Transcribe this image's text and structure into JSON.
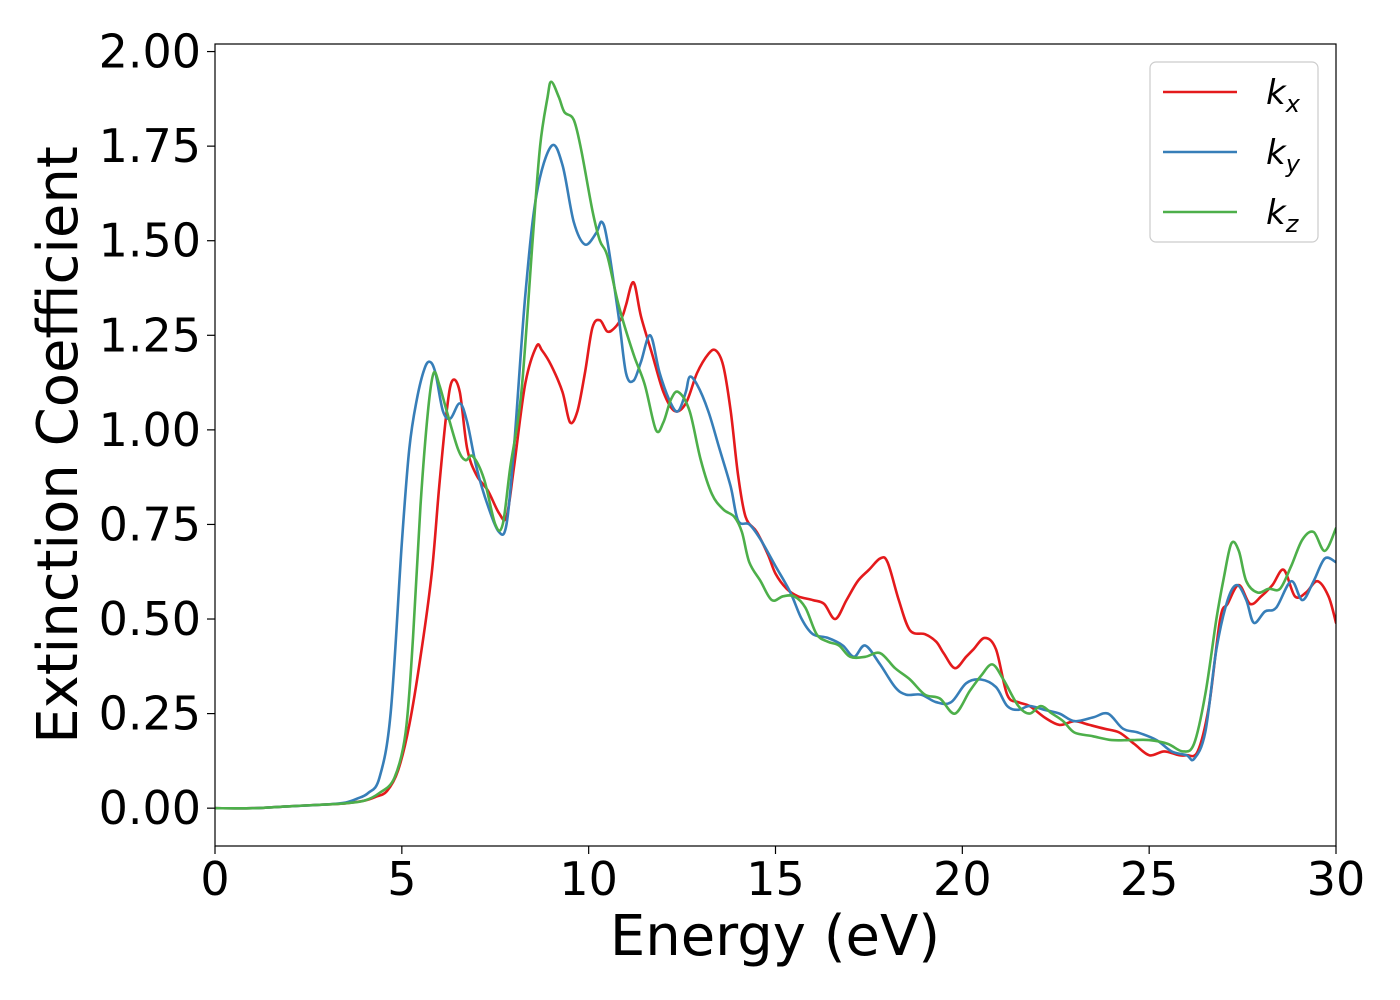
{
  "chart_data": {
    "type": "line",
    "title": "",
    "xlabel": "Energy (eV)",
    "ylabel": "Extinction Coefficient",
    "xlim": [
      0,
      30
    ],
    "ylim": [
      -0.1,
      2.02
    ],
    "xticks": [
      0,
      5,
      10,
      15,
      20,
      25,
      30
    ],
    "xtick_labels": [
      "0",
      "5",
      "10",
      "15",
      "20",
      "25",
      "30"
    ],
    "yticks": [
      0.0,
      0.25,
      0.5,
      0.75,
      1.0,
      1.25,
      1.5,
      1.75,
      2.0
    ],
    "ytick_labels": [
      "0.00",
      "0.25",
      "0.50",
      "0.75",
      "1.00",
      "1.25",
      "1.50",
      "1.75",
      "2.00"
    ],
    "grid": false,
    "legend_position": "top-right",
    "series": [
      {
        "name": "k_x",
        "legend_main": "k",
        "legend_sub": "x",
        "color": "#e41a1c",
        "x": [
          0,
          1,
          2,
          3,
          3.5,
          4,
          4.3,
          4.6,
          4.9,
          5.2,
          5.5,
          5.8,
          6.0,
          6.2,
          6.35,
          6.55,
          6.75,
          7.0,
          7.3,
          7.6,
          7.8,
          8.0,
          8.3,
          8.6,
          8.75,
          9.0,
          9.3,
          9.5,
          9.7,
          9.9,
          10.1,
          10.3,
          10.5,
          10.7,
          10.9,
          11.0,
          11.2,
          11.4,
          11.7,
          12.0,
          12.3,
          12.6,
          12.9,
          13.2,
          13.4,
          13.6,
          13.8,
          14.0,
          14.2,
          14.5,
          14.8,
          15.0,
          15.3,
          15.6,
          16.0,
          16.3,
          16.6,
          16.9,
          17.2,
          17.5,
          17.8,
          18.0,
          18.3,
          18.6,
          19.0,
          19.3,
          19.5,
          19.8,
          20.1,
          20.3,
          20.6,
          20.9,
          21.2,
          21.5,
          21.8,
          22.2,
          22.6,
          23.0,
          23.4,
          23.8,
          24.2,
          24.6,
          25.0,
          25.4,
          25.8,
          26.0,
          26.3,
          26.6,
          26.9,
          27.1,
          27.4,
          27.7,
          28.0,
          28.3,
          28.6,
          28.9,
          29.2,
          29.5,
          29.8,
          30.0
        ],
        "y": [
          0.0,
          0.0,
          0.005,
          0.01,
          0.013,
          0.02,
          0.03,
          0.045,
          0.1,
          0.22,
          0.4,
          0.62,
          0.85,
          1.05,
          1.13,
          1.1,
          0.95,
          0.88,
          0.84,
          0.78,
          0.77,
          0.9,
          1.12,
          1.22,
          1.21,
          1.17,
          1.1,
          1.02,
          1.05,
          1.15,
          1.27,
          1.29,
          1.26,
          1.27,
          1.3,
          1.33,
          1.39,
          1.3,
          1.2,
          1.1,
          1.05,
          1.07,
          1.15,
          1.2,
          1.21,
          1.17,
          1.05,
          0.88,
          0.77,
          0.73,
          0.67,
          0.62,
          0.58,
          0.56,
          0.55,
          0.54,
          0.5,
          0.55,
          0.6,
          0.63,
          0.66,
          0.65,
          0.55,
          0.47,
          0.46,
          0.44,
          0.41,
          0.37,
          0.4,
          0.42,
          0.45,
          0.42,
          0.3,
          0.28,
          0.27,
          0.24,
          0.22,
          0.23,
          0.22,
          0.21,
          0.2,
          0.17,
          0.14,
          0.15,
          0.14,
          0.14,
          0.15,
          0.27,
          0.5,
          0.54,
          0.59,
          0.54,
          0.56,
          0.59,
          0.63,
          0.56,
          0.57,
          0.6,
          0.56,
          0.49
        ]
      },
      {
        "name": "k_y",
        "legend_main": "k",
        "legend_sub": "y",
        "color": "#377eb8",
        "x": [
          0,
          1,
          2,
          3,
          3.5,
          3.8,
          4.1,
          4.4,
          4.7,
          5.0,
          5.2,
          5.4,
          5.6,
          5.75,
          5.9,
          6.1,
          6.3,
          6.55,
          6.75,
          7.0,
          7.3,
          7.6,
          7.8,
          8.0,
          8.3,
          8.6,
          9.0,
          9.3,
          9.6,
          9.9,
          10.2,
          10.35,
          10.5,
          10.8,
          11.0,
          11.2,
          11.4,
          11.65,
          11.9,
          12.2,
          12.4,
          12.6,
          12.7,
          12.9,
          13.2,
          13.5,
          13.8,
          14.0,
          14.3,
          14.6,
          15.0,
          15.4,
          15.7,
          16.0,
          16.4,
          16.8,
          17.1,
          17.4,
          17.8,
          18.2,
          18.5,
          18.9,
          19.3,
          19.7,
          20.1,
          20.5,
          20.9,
          21.2,
          21.5,
          21.8,
          22.2,
          22.6,
          23.0,
          23.5,
          23.9,
          24.3,
          24.7,
          25.2,
          25.6,
          26.0,
          26.2,
          26.5,
          26.8,
          27.1,
          27.35,
          27.6,
          27.8,
          28.1,
          28.4,
          28.8,
          29.1,
          29.4,
          29.7,
          30.0
        ],
        "y": [
          0.0,
          0.0,
          0.005,
          0.01,
          0.015,
          0.025,
          0.04,
          0.08,
          0.25,
          0.7,
          0.95,
          1.08,
          1.16,
          1.18,
          1.15,
          1.05,
          1.03,
          1.07,
          1.02,
          0.9,
          0.8,
          0.73,
          0.75,
          0.95,
          1.35,
          1.62,
          1.75,
          1.7,
          1.55,
          1.49,
          1.52,
          1.55,
          1.5,
          1.3,
          1.15,
          1.13,
          1.18,
          1.25,
          1.15,
          1.07,
          1.05,
          1.1,
          1.14,
          1.12,
          1.05,
          0.95,
          0.85,
          0.76,
          0.75,
          0.71,
          0.64,
          0.57,
          0.5,
          0.46,
          0.45,
          0.43,
          0.4,
          0.43,
          0.38,
          0.32,
          0.3,
          0.3,
          0.28,
          0.28,
          0.33,
          0.34,
          0.32,
          0.27,
          0.26,
          0.27,
          0.26,
          0.25,
          0.23,
          0.24,
          0.25,
          0.21,
          0.2,
          0.18,
          0.15,
          0.14,
          0.13,
          0.2,
          0.42,
          0.55,
          0.59,
          0.55,
          0.49,
          0.52,
          0.53,
          0.6,
          0.55,
          0.6,
          0.66,
          0.65
        ]
      },
      {
        "name": "k_z",
        "legend_main": "k",
        "legend_sub": "z",
        "color": "#4daf4a",
        "x": [
          0,
          1,
          2,
          3,
          3.5,
          4.0,
          4.4,
          4.8,
          5.1,
          5.3,
          5.5,
          5.7,
          5.85,
          6.0,
          6.2,
          6.5,
          6.7,
          6.9,
          7.2,
          7.5,
          7.7,
          7.9,
          8.2,
          8.5,
          8.7,
          8.9,
          9.0,
          9.2,
          9.35,
          9.6,
          9.8,
          10.1,
          10.3,
          10.5,
          10.8,
          11.2,
          11.5,
          11.8,
          12.0,
          12.2,
          12.4,
          12.7,
          13.0,
          13.3,
          13.6,
          13.9,
          14.1,
          14.3,
          14.6,
          14.9,
          15.2,
          15.5,
          15.8,
          16.1,
          16.4,
          16.7,
          17.0,
          17.4,
          17.8,
          18.2,
          18.6,
          19.0,
          19.4,
          19.8,
          20.2,
          20.5,
          20.8,
          21.1,
          21.5,
          21.8,
          22.1,
          22.4,
          22.7,
          23.0,
          23.5,
          24.0,
          24.5,
          25.0,
          25.5,
          25.9,
          26.2,
          26.5,
          26.8,
          27.0,
          27.2,
          27.4,
          27.6,
          27.9,
          28.2,
          28.5,
          28.8,
          29.1,
          29.4,
          29.7,
          30.0
        ],
        "y": [
          0.0,
          0.0,
          0.005,
          0.01,
          0.013,
          0.02,
          0.04,
          0.08,
          0.2,
          0.45,
          0.8,
          1.05,
          1.15,
          1.12,
          1.05,
          0.95,
          0.92,
          0.93,
          0.87,
          0.75,
          0.75,
          0.9,
          1.1,
          1.5,
          1.75,
          1.88,
          1.92,
          1.88,
          1.84,
          1.82,
          1.74,
          1.58,
          1.5,
          1.46,
          1.33,
          1.2,
          1.12,
          1.0,
          1.02,
          1.08,
          1.1,
          1.05,
          0.92,
          0.83,
          0.79,
          0.77,
          0.73,
          0.65,
          0.6,
          0.55,
          0.56,
          0.56,
          0.53,
          0.46,
          0.44,
          0.43,
          0.4,
          0.4,
          0.41,
          0.37,
          0.34,
          0.3,
          0.29,
          0.25,
          0.31,
          0.35,
          0.38,
          0.34,
          0.27,
          0.25,
          0.27,
          0.25,
          0.23,
          0.2,
          0.19,
          0.18,
          0.18,
          0.18,
          0.17,
          0.15,
          0.17,
          0.3,
          0.5,
          0.61,
          0.7,
          0.68,
          0.6,
          0.57,
          0.58,
          0.58,
          0.64,
          0.71,
          0.73,
          0.68,
          0.74
        ]
      }
    ]
  }
}
